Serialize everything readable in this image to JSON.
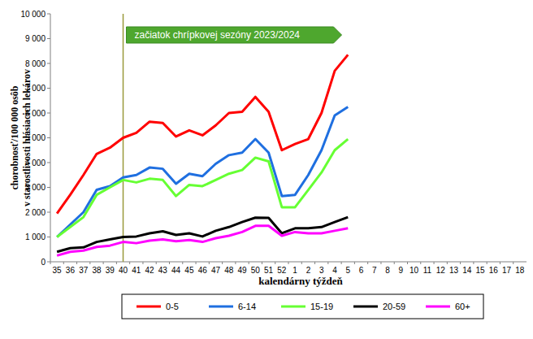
{
  "chart_data": {
    "type": "line",
    "ylabel": [
      "chorobnosť/100 000 osôb",
      "v starostlivosti hlásiacich lekárov"
    ],
    "xlabel": "kalendárny týždeň",
    "annotations": [
      {
        "text": "začiatok chrípkovej sezóny 2023/2024",
        "x": "40"
      }
    ],
    "categories": [
      "35",
      "36",
      "37",
      "38",
      "39",
      "40",
      "41",
      "42",
      "43",
      "44",
      "45",
      "46",
      "47",
      "48",
      "49",
      "50",
      "51",
      "52",
      "1",
      "2",
      "3",
      "4",
      "5",
      "6",
      "7",
      "8",
      "9",
      "10",
      "11",
      "12",
      "13",
      "14",
      "15",
      "16",
      "17",
      "18"
    ],
    "ylim": [
      0,
      10000
    ],
    "yticks": [
      {
        "value": 0,
        "label": "0"
      },
      {
        "value": 1000,
        "label": "1 000"
      },
      {
        "value": 2000,
        "label": "2 000"
      },
      {
        "value": 3000,
        "label": "3 000"
      },
      {
        "value": 4000,
        "label": "4 000"
      },
      {
        "value": 5000,
        "label": "5 000"
      },
      {
        "value": 6000,
        "label": "6 000"
      },
      {
        "value": 7000,
        "label": "7 000"
      },
      {
        "value": 8000,
        "label": "8 000"
      },
      {
        "value": 9000,
        "label": "9 000"
      },
      {
        "value": 10000,
        "label": "10 000"
      }
    ],
    "grid": false,
    "legend": "bottom",
    "series": [
      {
        "name": "0-5",
        "color": "#ff0000",
        "values": [
          1950,
          2700,
          3500,
          4350,
          4600,
          5000,
          5200,
          5650,
          5600,
          5050,
          5300,
          5100,
          5500,
          6000,
          6050,
          6650,
          6050,
          4500,
          4750,
          4950,
          6000,
          7700,
          8350,
          null,
          null,
          null,
          null,
          null,
          null,
          null,
          null,
          null,
          null,
          null,
          null,
          null
        ]
      },
      {
        "name": "6-14",
        "color": "#1f6fe0",
        "values": [
          1000,
          1500,
          2000,
          2900,
          3050,
          3400,
          3500,
          3800,
          3750,
          3150,
          3550,
          3450,
          3950,
          4300,
          4400,
          4950,
          4400,
          2650,
          2700,
          3500,
          4500,
          5900,
          6250,
          null,
          null,
          null,
          null,
          null,
          null,
          null,
          null,
          null,
          null,
          null,
          null,
          null
        ]
      },
      {
        "name": "15-19",
        "color": "#66ff33",
        "values": [
          1000,
          1400,
          1800,
          2700,
          3000,
          3300,
          3200,
          3350,
          3300,
          2650,
          3100,
          3050,
          3300,
          3550,
          3700,
          4200,
          4050,
          2200,
          2200,
          2900,
          3600,
          4500,
          4950,
          null,
          null,
          null,
          null,
          null,
          null,
          null,
          null,
          null,
          null,
          null,
          null,
          null
        ]
      },
      {
        "name": "20-59",
        "color": "#000000",
        "values": [
          400,
          550,
          580,
          800,
          900,
          1000,
          1020,
          1150,
          1230,
          1080,
          1150,
          1020,
          1250,
          1400,
          1600,
          1780,
          1770,
          1150,
          1350,
          1350,
          1400,
          1600,
          1800,
          null,
          null,
          null,
          null,
          null,
          null,
          null,
          null,
          null,
          null,
          null,
          null,
          null
        ]
      },
      {
        "name": "60+",
        "color": "#ff00ff",
        "values": [
          250,
          400,
          450,
          600,
          650,
          800,
          750,
          850,
          900,
          830,
          880,
          800,
          950,
          1050,
          1200,
          1450,
          1450,
          1050,
          1200,
          1150,
          1150,
          1250,
          1350,
          null,
          null,
          null,
          null,
          null,
          null,
          null,
          null,
          null,
          null,
          null,
          null,
          null
        ]
      }
    ]
  }
}
